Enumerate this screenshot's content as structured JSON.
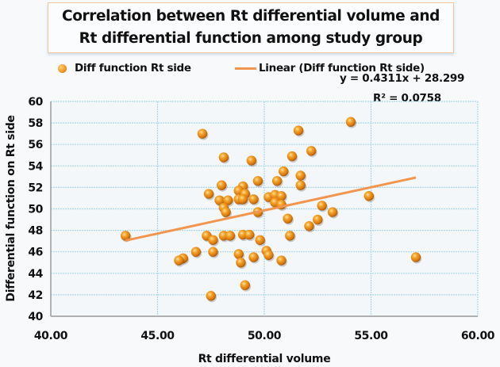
{
  "chart_data": {
    "type": "scatter",
    "title": "Correlation between Rt differential volume and Rt differential function among study group",
    "xlabel": "Rt differential volume",
    "ylabel": "Differential function on Rt side",
    "xlim": [
      40,
      60
    ],
    "ylim": [
      40,
      60
    ],
    "x_ticks": [
      "40.00",
      "45.00",
      "50.00",
      "55.00",
      "60.00"
    ],
    "x_tick_values": [
      40,
      45,
      50,
      55,
      60
    ],
    "y_ticks": [
      "40",
      "42",
      "44",
      "46",
      "48",
      "50",
      "52",
      "54",
      "56",
      "58",
      "60"
    ],
    "y_tick_values": [
      40,
      42,
      44,
      46,
      48,
      50,
      52,
      54,
      56,
      58,
      60
    ],
    "grid": true,
    "legend_position": "top",
    "series": [
      {
        "name": "Diff function Rt side",
        "color": "#f39a1f",
        "points": [
          [
            43.5,
            47.5
          ],
          [
            47.1,
            57.0
          ],
          [
            48.1,
            54.8
          ],
          [
            49.4,
            54.5
          ],
          [
            51.6,
            57.3
          ],
          [
            54.05,
            58.1
          ],
          [
            52.2,
            55.4
          ],
          [
            51.3,
            54.9
          ],
          [
            50.9,
            53.5
          ],
          [
            51.7,
            53.1
          ],
          [
            51.7,
            52.2
          ],
          [
            50.6,
            52.6
          ],
          [
            49.7,
            52.6
          ],
          [
            49.0,
            52.1
          ],
          [
            48.0,
            52.2
          ],
          [
            47.4,
            51.4
          ],
          [
            48.8,
            51.7
          ],
          [
            49.1,
            51.4
          ],
          [
            48.8,
            50.9
          ],
          [
            49.0,
            50.9
          ],
          [
            49.5,
            50.9
          ],
          [
            47.9,
            50.8
          ],
          [
            48.3,
            50.8
          ],
          [
            48.1,
            50.1
          ],
          [
            48.2,
            49.7
          ],
          [
            50.2,
            51.1
          ],
          [
            50.5,
            51.3
          ],
          [
            50.8,
            51.2
          ],
          [
            50.5,
            50.6
          ],
          [
            50.8,
            50.4
          ],
          [
            49.7,
            49.7
          ],
          [
            51.1,
            49.1
          ],
          [
            52.1,
            48.4
          ],
          [
            52.7,
            50.3
          ],
          [
            52.5,
            49.0
          ],
          [
            53.2,
            49.7
          ],
          [
            47.3,
            47.5
          ],
          [
            47.6,
            47.1
          ],
          [
            48.1,
            47.5
          ],
          [
            48.4,
            47.5
          ],
          [
            49.0,
            47.6
          ],
          [
            49.3,
            47.6
          ],
          [
            49.8,
            47.1
          ],
          [
            51.2,
            47.5
          ],
          [
            46.8,
            46.0
          ],
          [
            47.6,
            46.0
          ],
          [
            48.8,
            45.8
          ],
          [
            48.9,
            45.0
          ],
          [
            49.5,
            45.5
          ],
          [
            50.1,
            46.1
          ],
          [
            50.2,
            45.7
          ],
          [
            50.8,
            45.2
          ],
          [
            49.1,
            42.9
          ],
          [
            47.5,
            41.9
          ],
          [
            46.2,
            45.4
          ],
          [
            46.0,
            45.2
          ],
          [
            54.9,
            51.2
          ],
          [
            57.1,
            45.5
          ]
        ]
      }
    ],
    "trendline": {
      "name": "Linear (Diff function Rt side)",
      "color": "#f2954e",
      "slope": 0.4311,
      "intercept": 28.299,
      "x_range": [
        43.5,
        57.1
      ],
      "equation_label": "y = 0.4311x + 28.299",
      "r2_label": "R² = 0.0758"
    }
  }
}
